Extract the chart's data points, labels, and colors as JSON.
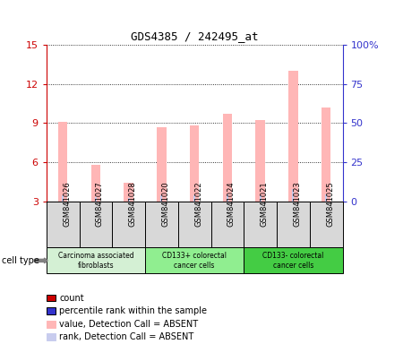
{
  "title": "GDS4385 / 242495_at",
  "samples": [
    "GSM841026",
    "GSM841027",
    "GSM841028",
    "GSM841020",
    "GSM841022",
    "GSM841024",
    "GSM841021",
    "GSM841023",
    "GSM841025"
  ],
  "value_bars": [
    9.1,
    5.8,
    4.4,
    8.7,
    8.8,
    9.7,
    9.2,
    13.0,
    10.2
  ],
  "rank_bars": [
    3.45,
    3.35,
    3.25,
    3.45,
    3.45,
    3.55,
    3.45,
    3.95,
    3.55
  ],
  "ylim_left": [
    3,
    15
  ],
  "ylim_right": [
    0,
    100
  ],
  "yticks_left": [
    3,
    6,
    9,
    12,
    15
  ],
  "ytick_labels_left": [
    "3",
    "6",
    "9",
    "12",
    "15"
  ],
  "yticks_right": [
    0,
    25,
    50,
    75,
    100
  ],
  "ytick_labels_right": [
    "0",
    "25",
    "50",
    "75",
    "100%"
  ],
  "value_color": "#ffb6b6",
  "rank_color": "#c8ccee",
  "count_color": "#cc0000",
  "percentile_color": "#3333cc",
  "left_axis_color": "#cc0000",
  "right_axis_color": "#3333cc",
  "ct_colors": [
    "#d4f0d4",
    "#90ee90",
    "#44cc44"
  ],
  "ct_labels": [
    "Carcinoma associated\nfibroblasts",
    "CD133+ colorectal\ncancer cells",
    "CD133- colorectal\ncancer cells"
  ],
  "ct_ranges": [
    [
      0,
      3
    ],
    [
      3,
      6
    ],
    [
      6,
      9
    ]
  ],
  "legend_items": [
    {
      "color": "#cc0000",
      "label": "count",
      "outlined": true
    },
    {
      "color": "#3333cc",
      "label": "percentile rank within the sample",
      "outlined": true
    },
    {
      "color": "#ffb6b6",
      "label": "value, Detection Call = ABSENT",
      "outlined": false
    },
    {
      "color": "#c8ccee",
      "label": "rank, Detection Call = ABSENT",
      "outlined": false
    }
  ],
  "sample_box_color": "#d8d8d8",
  "bar_width": 0.28,
  "rank_bar_width": 0.06
}
